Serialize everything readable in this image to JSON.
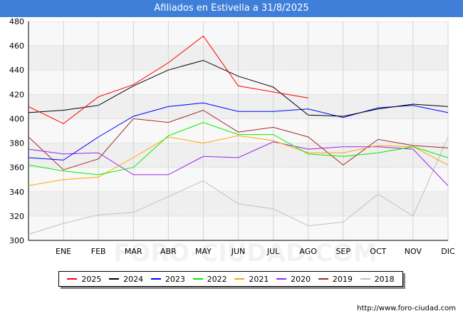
{
  "header": {
    "title": "Afiliados en Estivella a 31/8/2025"
  },
  "source": "http://www.foro-ciudad.com",
  "watermark": "FORO-CIUDAD.COM",
  "chart_data": {
    "type": "line",
    "title": "Afiliados en Estivella a 31/8/2025",
    "categories": [
      "",
      "ENE",
      "FEB",
      "MAR",
      "ABR",
      "MAY",
      "JUN",
      "JUL",
      "AGO",
      "SEP",
      "OCT",
      "NOV",
      "DIC"
    ],
    "ylim": [
      300,
      480
    ],
    "yticks": [
      300,
      320,
      340,
      360,
      380,
      400,
      420,
      440,
      460,
      480
    ],
    "grid": true,
    "legend_position": "bottom",
    "series": [
      {
        "name": "2025",
        "color": "#ff0000",
        "values": [
          410,
          396,
          418,
          428,
          446,
          468,
          427,
          422,
          417,
          null,
          null,
          null,
          null
        ]
      },
      {
        "name": "2024",
        "color": "#000000",
        "values": [
          405,
          407,
          411,
          427,
          440,
          448,
          435,
          426,
          403,
          402,
          408,
          412,
          410
        ]
      },
      {
        "name": "2023",
        "color": "#0000ff",
        "values": [
          368,
          366,
          385,
          402,
          410,
          413,
          406,
          406,
          408,
          401,
          409,
          411,
          405
        ]
      },
      {
        "name": "2022",
        "color": "#00ee00",
        "values": [
          362,
          357,
          354,
          360,
          386,
          397,
          387,
          387,
          371,
          369,
          372,
          377,
          368
        ]
      },
      {
        "name": "2021",
        "color": "#ffa500",
        "values": [
          345,
          350,
          352,
          368,
          385,
          380,
          386,
          382,
          372,
          372,
          378,
          377,
          362
        ]
      },
      {
        "name": "2020",
        "color": "#a020f0",
        "values": [
          375,
          371,
          372,
          354,
          354,
          369,
          368,
          381,
          375,
          377,
          377,
          375,
          345
        ]
      },
      {
        "name": "2019",
        "color": "#a52a2a",
        "values": [
          385,
          358,
          367,
          400,
          397,
          407,
          389,
          393,
          385,
          362,
          383,
          378,
          376
        ]
      },
      {
        "name": "2018",
        "color": "#c0c0c0",
        "values": [
          305,
          314,
          321,
          323,
          336,
          349,
          330,
          326,
          312,
          315,
          338,
          320,
          385
        ]
      }
    ]
  }
}
